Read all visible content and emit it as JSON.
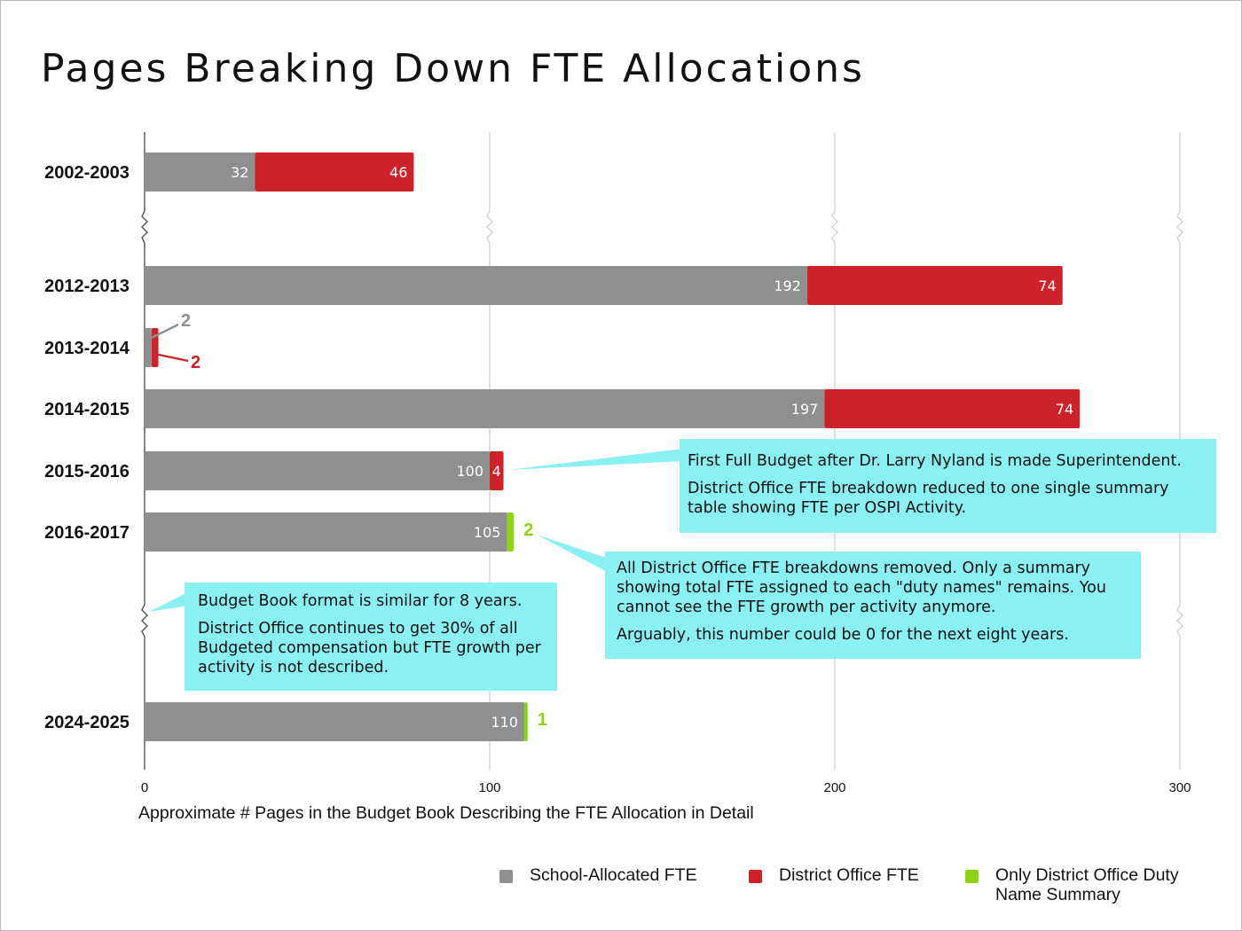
{
  "chart_data": {
    "type": "bar",
    "orientation": "horizontal",
    "stacked": true,
    "title": "Pages Breaking Down FTE Allocations",
    "xlabel": "Approximate # Pages in the Budget Book Describing the FTE Allocation in Detail",
    "xlim": [
      0,
      300
    ],
    "xticks": [
      0,
      100,
      200,
      300
    ],
    "grid": true,
    "legend_position": "bottom-right",
    "axis_breaks": [
      "between 2002-2003 and 2012-2013",
      "between 2016-2017 and 2024-2025"
    ],
    "categories": [
      "2002-2003",
      "2012-2013",
      "2013-2014",
      "2014-2015",
      "2015-2016",
      "2016-2017",
      "2024-2025"
    ],
    "series": [
      {
        "name": "School-Allocated FTE",
        "color": "#8f8f8f",
        "values": [
          32,
          192,
          2,
          197,
          100,
          105,
          110
        ]
      },
      {
        "name": "District Office FTE",
        "color": "#cc2229",
        "values": [
          46,
          74,
          2,
          74,
          4,
          0,
          0
        ]
      },
      {
        "name": "Only District Office Duty Name Summary",
        "color": "#8ed313",
        "values": [
          0,
          0,
          0,
          0,
          0,
          2,
          1
        ]
      }
    ],
    "legend": {
      "school": "School-Allocated FTE",
      "district": "District Office FTE",
      "summary": "Only District Office Duty Name Summary"
    },
    "annotations": {
      "nyland": {
        "line1": "First Full Budget after Dr. Larry Nyland is made Superintendent.",
        "line2": "District Office FTE breakdown reduced to one single summary table showing FTE per OSPI Activity."
      },
      "removed": {
        "line1": "All District Office FTE breakdowns removed. Only a summary showing total FTE assigned to each \"duty names\" remains. You cannot see the FTE growth per activity anymore.",
        "line2": "Arguably, this number could be 0 for the next eight years."
      },
      "format": {
        "line1": "Budget Book format is similar for 8 years.",
        "line2": "District Office continues to get 30% of all Budgeted compensation but FTE growth per activity is not described."
      }
    }
  }
}
